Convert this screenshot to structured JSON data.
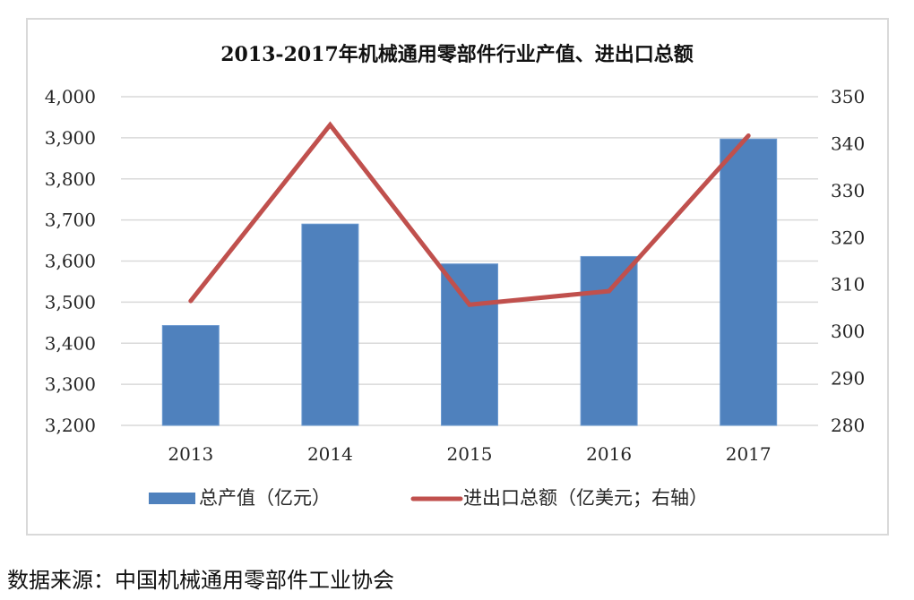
{
  "chart_data": {
    "type": "bar",
    "title": "2013-2017年机械通用零部件行业产值、进出口总额",
    "xlabel": "",
    "ylabel": "",
    "categories": [
      "2013",
      "2014",
      "2015",
      "2016",
      "2017"
    ],
    "series": [
      {
        "name": "总产值（亿元）",
        "type": "bar",
        "axis": "left",
        "color": "#4F81BD",
        "values": [
          3443,
          3690,
          3593,
          3611,
          3897
        ]
      },
      {
        "name": "进出口总额（亿美元；右轴）",
        "type": "line",
        "axis": "right",
        "color": "#C0504D",
        "values": [
          306.5,
          344,
          305.7,
          308.6,
          341.7
        ]
      }
    ],
    "ylim": [
      3200,
      4000
    ],
    "y2lim": [
      280,
      350
    ],
    "left_ticks": [
      "3,200",
      "3,300",
      "3,400",
      "3,500",
      "3,600",
      "3,700",
      "3,800",
      "3,900",
      "4,000"
    ],
    "right_ticks": [
      "280",
      "290",
      "300",
      "310",
      "320",
      "330",
      "340",
      "350"
    ],
    "grid": true,
    "legend_position": "bottom"
  },
  "source_note": "数据来源：中国机械通用零部件工业协会"
}
